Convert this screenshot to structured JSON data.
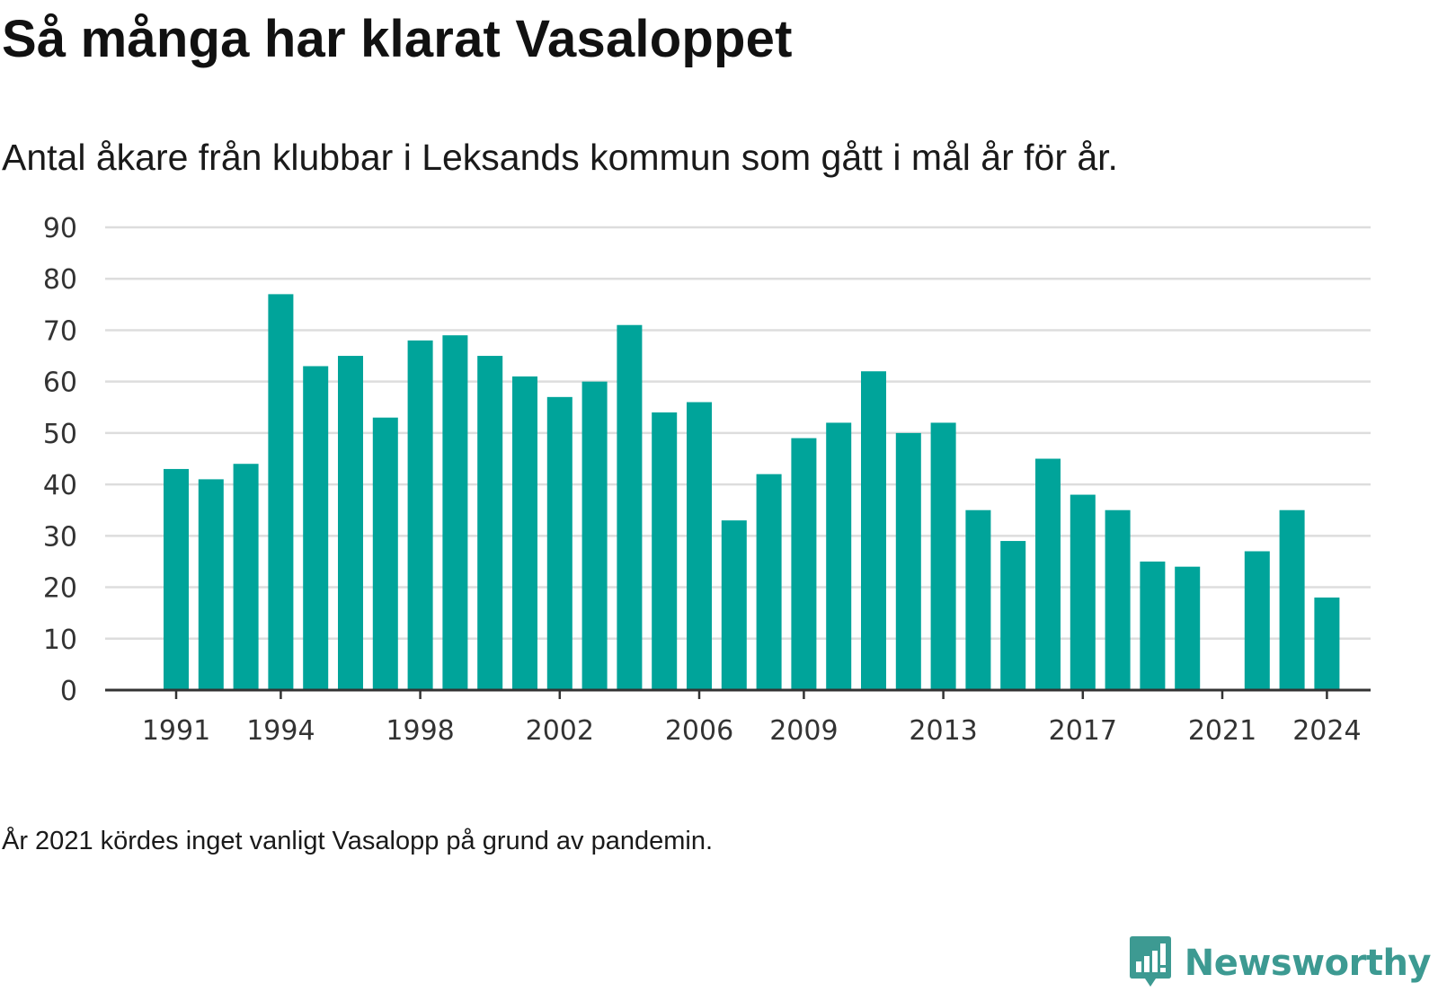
{
  "title": "Så många har klarat Vasaloppet",
  "subtitle": "Antal åkare från klubbar i Leksands kommun som gått i mål år för år.",
  "footnote": "År 2021 kördes inget vanligt Vasalopp på grund av pandemin.",
  "brand": {
    "name": "Newsworthy",
    "icon": "newsworthy-logo-icon"
  },
  "colors": {
    "bar": "#00a49a",
    "grid": "#dddddd",
    "axis": "#333333",
    "brand": "#3d9a92"
  },
  "chart_data": {
    "type": "bar",
    "x": [
      1991,
      1992,
      1993,
      1994,
      1995,
      1996,
      1997,
      1998,
      1999,
      2000,
      2001,
      2002,
      2003,
      2004,
      2005,
      2006,
      2007,
      2008,
      2009,
      2010,
      2011,
      2012,
      2013,
      2014,
      2015,
      2016,
      2017,
      2018,
      2019,
      2020,
      2021,
      2022,
      2023,
      2024
    ],
    "values": [
      43,
      41,
      44,
      77,
      63,
      65,
      53,
      68,
      69,
      65,
      61,
      57,
      60,
      71,
      54,
      56,
      33,
      42,
      49,
      52,
      62,
      50,
      52,
      35,
      29,
      45,
      38,
      35,
      25,
      24,
      null,
      27,
      35,
      18
    ],
    "x_ticks": [
      "1991",
      "1994",
      "1998",
      "2002",
      "2006",
      "2009",
      "2013",
      "2017",
      "2021",
      "2024"
    ],
    "y_ticks": [
      "0",
      "10",
      "20",
      "30",
      "40",
      "50",
      "60",
      "70",
      "80",
      "90"
    ],
    "ylim": [
      0,
      90
    ],
    "grid": true,
    "legend": "none"
  }
}
